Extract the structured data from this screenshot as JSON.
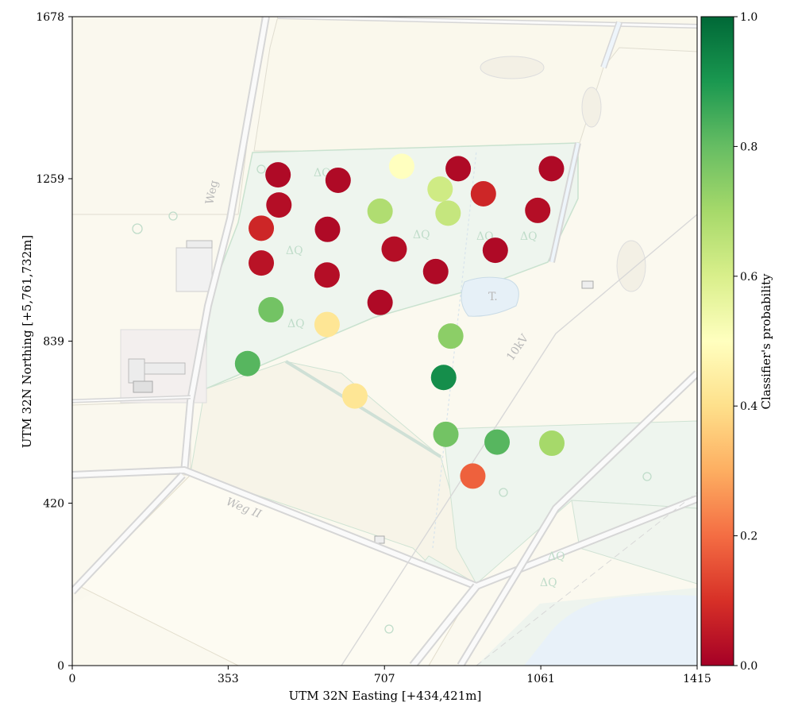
{
  "axes": {
    "xlabel": "UTM 32N Easting [+434,421m]",
    "ylabel": "UTM 32N Northing [+5,761,732m]",
    "xticks": [
      "0",
      "353",
      "707",
      "1061",
      "1415"
    ],
    "yticks": [
      "0",
      "420",
      "839",
      "1259",
      "1678"
    ]
  },
  "colorbar": {
    "label": "Classifier's probability",
    "ticks": [
      "0.0",
      "0.2",
      "0.4",
      "0.6",
      "0.8",
      "1.0"
    ],
    "colormap": [
      "#a50026",
      "#d73027",
      "#f46d43",
      "#fdae61",
      "#fee08b",
      "#ffffbf",
      "#d9ef8b",
      "#a6d96a",
      "#66bd63",
      "#1a9850",
      "#006837"
    ]
  },
  "map_labels": [
    "Weg",
    "Weg II",
    "10kV",
    "T."
  ],
  "chart_data": {
    "type": "scatter",
    "xlim": [
      0,
      1415
    ],
    "ylim": [
      0,
      1678
    ],
    "xlabel": "UTM 32N Easting [+434,421m]",
    "ylabel": "UTM 32N Northing [+5,761,732m]",
    "colorbar_label": "Classifier's probability",
    "colorbar_range": [
      0.0,
      1.0
    ],
    "points": [
      {
        "x": 466,
        "y": 1269,
        "p": 0.02
      },
      {
        "x": 602,
        "y": 1255,
        "p": 0.02
      },
      {
        "x": 746,
        "y": 1291,
        "p": 0.5
      },
      {
        "x": 874,
        "y": 1285,
        "p": 0.02
      },
      {
        "x": 1085,
        "y": 1285,
        "p": 0.02
      },
      {
        "x": 833,
        "y": 1232,
        "p": 0.62
      },
      {
        "x": 931,
        "y": 1220,
        "p": 0.08
      },
      {
        "x": 468,
        "y": 1191,
        "p": 0.03
      },
      {
        "x": 697,
        "y": 1175,
        "p": 0.68
      },
      {
        "x": 851,
        "y": 1170,
        "p": 0.64
      },
      {
        "x": 1054,
        "y": 1177,
        "p": 0.03
      },
      {
        "x": 428,
        "y": 1131,
        "p": 0.08
      },
      {
        "x": 578,
        "y": 1128,
        "p": 0.02
      },
      {
        "x": 729,
        "y": 1077,
        "p": 0.03
      },
      {
        "x": 958,
        "y": 1074,
        "p": 0.02
      },
      {
        "x": 428,
        "y": 1041,
        "p": 0.04
      },
      {
        "x": 577,
        "y": 1010,
        "p": 0.03
      },
      {
        "x": 823,
        "y": 1019,
        "p": 0.02
      },
      {
        "x": 697,
        "y": 939,
        "p": 0.02
      },
      {
        "x": 450,
        "y": 920,
        "p": 0.78
      },
      {
        "x": 577,
        "y": 882,
        "p": 0.42
      },
      {
        "x": 857,
        "y": 852,
        "p": 0.74
      },
      {
        "x": 397,
        "y": 781,
        "p": 0.82
      },
      {
        "x": 841,
        "y": 745,
        "p": 0.92
      },
      {
        "x": 640,
        "y": 697,
        "p": 0.42
      },
      {
        "x": 846,
        "y": 598,
        "p": 0.78
      },
      {
        "x": 962,
        "y": 578,
        "p": 0.82
      },
      {
        "x": 1086,
        "y": 575,
        "p": 0.7
      },
      {
        "x": 907,
        "y": 490,
        "p": 0.18
      }
    ]
  }
}
